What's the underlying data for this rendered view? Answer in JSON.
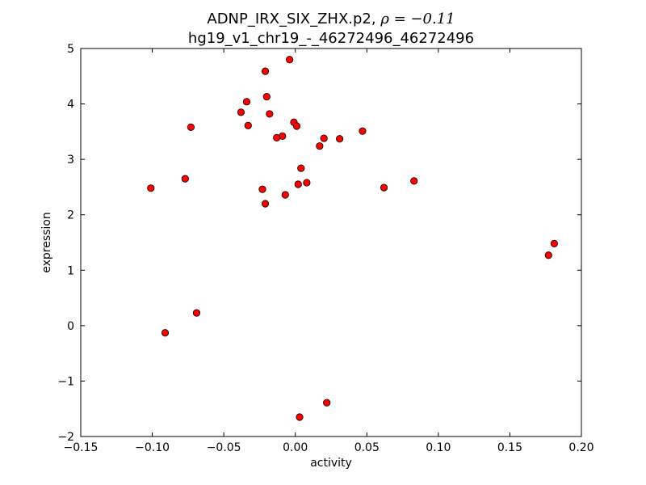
{
  "chart_data": {
    "type": "scatter",
    "title": "ADNP_IRX_SIX_ZHX.p2, ρ = −0.11",
    "title_main": "ADNP_IRX_SIX_ZHX.p2, ",
    "title_rho": "ρ = −0.11",
    "subtitle": "hg19_v1_chr19_-_46272496_46272496",
    "xlabel": "activity",
    "ylabel": "expression",
    "xlim": [
      -0.15,
      0.2
    ],
    "ylim": [
      -2,
      5
    ],
    "xticks": [
      -0.15,
      -0.1,
      -0.05,
      0.0,
      0.05,
      0.1,
      0.15,
      0.2
    ],
    "xtick_labels": [
      "−0.15",
      "−0.10",
      "−0.05",
      "0.00",
      "0.05",
      "0.10",
      "0.15",
      "0.20"
    ],
    "yticks": [
      -2,
      -1,
      0,
      1,
      2,
      3,
      4,
      5
    ],
    "ytick_labels": [
      "−2",
      "−1",
      "0",
      "1",
      "2",
      "3",
      "4",
      "5"
    ],
    "grid": false,
    "marker_color": "#ff0000",
    "marker_edge": "#000000",
    "points": [
      {
        "x": -0.004,
        "y": 4.8
      },
      {
        "x": -0.021,
        "y": 4.59
      },
      {
        "x": -0.02,
        "y": 4.13
      },
      {
        "x": -0.034,
        "y": 4.04
      },
      {
        "x": -0.038,
        "y": 3.85
      },
      {
        "x": -0.018,
        "y": 3.82
      },
      {
        "x": -0.073,
        "y": 3.58
      },
      {
        "x": -0.033,
        "y": 3.61
      },
      {
        "x": -0.001,
        "y": 3.67
      },
      {
        "x": 0.001,
        "y": 3.6
      },
      {
        "x": 0.047,
        "y": 3.51
      },
      {
        "x": -0.009,
        "y": 3.42
      },
      {
        "x": -0.013,
        "y": 3.39
      },
      {
        "x": 0.02,
        "y": 3.38
      },
      {
        "x": 0.031,
        "y": 3.37
      },
      {
        "x": 0.017,
        "y": 3.24
      },
      {
        "x": 0.004,
        "y": 2.84
      },
      {
        "x": -0.077,
        "y": 2.65
      },
      {
        "x": 0.083,
        "y": 2.61
      },
      {
        "x": 0.008,
        "y": 2.58
      },
      {
        "x": 0.002,
        "y": 2.55
      },
      {
        "x": 0.062,
        "y": 2.49
      },
      {
        "x": -0.101,
        "y": 2.48
      },
      {
        "x": -0.023,
        "y": 2.46
      },
      {
        "x": -0.007,
        "y": 2.36
      },
      {
        "x": -0.021,
        "y": 2.2
      },
      {
        "x": 0.181,
        "y": 1.48
      },
      {
        "x": 0.177,
        "y": 1.27
      },
      {
        "x": -0.069,
        "y": 0.23
      },
      {
        "x": -0.091,
        "y": -0.13
      },
      {
        "x": 0.022,
        "y": -1.39
      },
      {
        "x": 0.003,
        "y": -1.65
      }
    ]
  }
}
